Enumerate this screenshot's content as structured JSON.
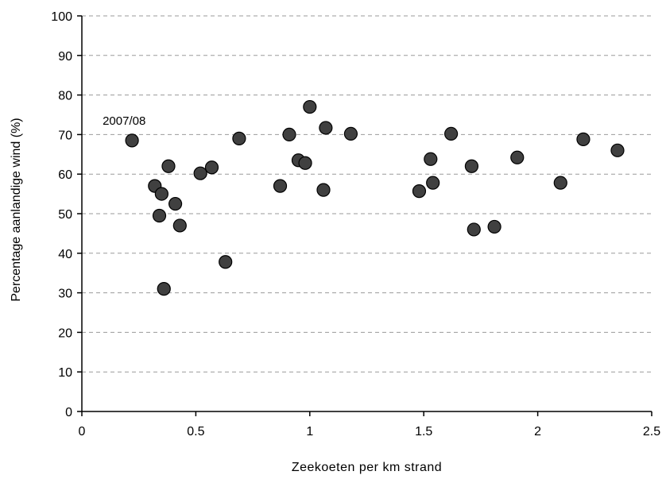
{
  "chart_data": {
    "type": "scatter",
    "title": "",
    "xlabel": "Zeekoeten per km strand",
    "ylabel": "Percentage aanlandige wind (%)",
    "xlim": [
      0,
      2.5
    ],
    "ylim": [
      0,
      100
    ],
    "xticks": [
      0,
      0.5,
      1,
      1.5,
      2,
      2.5
    ],
    "xtick_labels": [
      "0",
      "0.5",
      "1",
      "1.5",
      "2",
      "2.5"
    ],
    "yticks": [
      0,
      10,
      20,
      30,
      40,
      50,
      60,
      70,
      80,
      90,
      100
    ],
    "ytick_labels": [
      "0",
      "10",
      "20",
      "30",
      "40",
      "50",
      "60",
      "70",
      "80",
      "90",
      "100"
    ],
    "grid": "horizontal-dashed",
    "annotations": [
      {
        "text": "2007/08",
        "x": 0.22,
        "y": 68.5
      }
    ],
    "colors": {
      "marker_fill": "#404040",
      "marker_edge": "#000000",
      "grid": "#9a9a9a"
    },
    "points": [
      {
        "x": 0.22,
        "y": 68.5
      },
      {
        "x": 0.32,
        "y": 57
      },
      {
        "x": 0.34,
        "y": 49.5
      },
      {
        "x": 0.35,
        "y": 55
      },
      {
        "x": 0.36,
        "y": 31
      },
      {
        "x": 0.38,
        "y": 62
      },
      {
        "x": 0.41,
        "y": 52.5
      },
      {
        "x": 0.43,
        "y": 47
      },
      {
        "x": 0.52,
        "y": 60.2
      },
      {
        "x": 0.57,
        "y": 61.7
      },
      {
        "x": 0.63,
        "y": 37.8
      },
      {
        "x": 0.69,
        "y": 69
      },
      {
        "x": 0.87,
        "y": 57
      },
      {
        "x": 0.91,
        "y": 70
      },
      {
        "x": 0.95,
        "y": 63.5
      },
      {
        "x": 0.98,
        "y": 62.8
      },
      {
        "x": 1.0,
        "y": 77
      },
      {
        "x": 1.06,
        "y": 56
      },
      {
        "x": 1.07,
        "y": 71.7
      },
      {
        "x": 1.18,
        "y": 70.2
      },
      {
        "x": 1.48,
        "y": 55.7
      },
      {
        "x": 1.53,
        "y": 63.8
      },
      {
        "x": 1.54,
        "y": 57.8
      },
      {
        "x": 1.62,
        "y": 70.2
      },
      {
        "x": 1.71,
        "y": 62
      },
      {
        "x": 1.72,
        "y": 46
      },
      {
        "x": 1.81,
        "y": 46.7
      },
      {
        "x": 1.91,
        "y": 64.2
      },
      {
        "x": 2.1,
        "y": 57.8
      },
      {
        "x": 2.2,
        "y": 68.8
      },
      {
        "x": 2.35,
        "y": 66
      }
    ]
  }
}
